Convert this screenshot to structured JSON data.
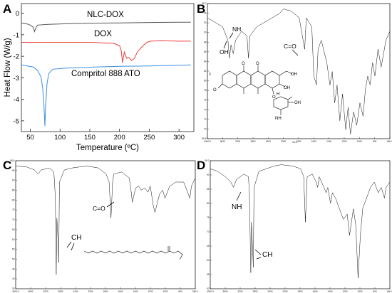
{
  "chart_data": [
    {
      "panel": "A",
      "type": "line",
      "xlabel": "Temperature (ºC)",
      "ylabel": "Heat Flow (W/g)",
      "xlim": [
        35,
        325
      ],
      "ylim": [
        -5.5,
        0.45
      ],
      "x_ticks": [
        "50",
        "100",
        "150",
        "200",
        "250",
        "300"
      ],
      "y_ticks": [
        "0",
        "-1",
        "-2",
        "-3",
        "-4",
        "-5"
      ],
      "series": [
        {
          "name": "NLC-DOX",
          "color": "#555555",
          "points": [
            [
              35,
              -0.45
            ],
            [
              45,
              -0.5
            ],
            [
              50,
              -0.55
            ],
            [
              55,
              -0.65
            ],
            [
              57,
              -0.85
            ],
            [
              59,
              -0.7
            ],
            [
              62,
              -0.55
            ],
            [
              80,
              -0.52
            ],
            [
              120,
              -0.48
            ],
            [
              160,
              -0.46
            ],
            [
              200,
              -0.45
            ],
            [
              250,
              -0.43
            ],
            [
              300,
              -0.42
            ],
            [
              320,
              -0.42
            ]
          ]
        },
        {
          "name": "DOX",
          "color": "#e8403a",
          "points": [
            [
              35,
              -1.35
            ],
            [
              80,
              -1.35
            ],
            [
              150,
              -1.35
            ],
            [
              190,
              -1.4
            ],
            [
              200,
              -1.5
            ],
            [
              203,
              -1.75
            ],
            [
              205,
              -2.3
            ],
            [
              208,
              -1.8
            ],
            [
              212,
              -2.1
            ],
            [
              216,
              -2.05
            ],
            [
              220,
              -2.2
            ],
            [
              225,
              -2.1
            ],
            [
              230,
              -1.8
            ],
            [
              238,
              -1.55
            ],
            [
              246,
              -1.35
            ],
            [
              252,
              -1.3
            ],
            [
              270,
              -1.28
            ],
            [
              300,
              -1.3
            ],
            [
              320,
              -1.3
            ]
          ]
        },
        {
          "name": "Compritol 888 ATO",
          "color": "#3b8fe0",
          "points": [
            [
              35,
              -2.4
            ],
            [
              55,
              -2.5
            ],
            [
              62,
              -2.65
            ],
            [
              68,
              -2.95
            ],
            [
              71,
              -3.5
            ],
            [
              73,
              -4.3
            ],
            [
              74.5,
              -5.25
            ],
            [
              76,
              -4.2
            ],
            [
              78,
              -3.3
            ],
            [
              81,
              -2.8
            ],
            [
              88,
              -2.6
            ],
            [
              110,
              -2.55
            ],
            [
              160,
              -2.5
            ],
            [
              200,
              -2.47
            ],
            [
              250,
              -2.45
            ],
            [
              300,
              -2.42
            ],
            [
              320,
              -2.4
            ]
          ]
        }
      ]
    },
    {
      "panel": "B",
      "type": "line",
      "xlim": [
        4000,
        400
      ],
      "x_ticks": [
        "4000.0",
        "3600",
        "3200",
        "2800",
        "2400",
        "2000",
        "1800",
        "1600",
        "1400",
        "1200",
        "1000",
        "800",
        "650.0"
      ],
      "y_ticks": [
        "98.2",
        "94",
        "92",
        "90",
        "88",
        "86",
        "84",
        "82",
        "80",
        "78",
        "76",
        "74",
        "72",
        "70",
        "68.5"
      ],
      "x_unit": "cm-1",
      "y_unit": "%T",
      "annotations": [
        "NH",
        "OH",
        "C=O"
      ],
      "points": [
        [
          4000,
          95
        ],
        [
          3800,
          94
        ],
        [
          3600,
          93
        ],
        [
          3460,
          90
        ],
        [
          3420,
          86
        ],
        [
          3380,
          89
        ],
        [
          3320,
          87
        ],
        [
          3260,
          90
        ],
        [
          3100,
          92
        ],
        [
          2960,
          91
        ],
        [
          2920,
          86
        ],
        [
          2880,
          91
        ],
        [
          2700,
          93
        ],
        [
          2500,
          94
        ],
        [
          2300,
          95
        ],
        [
          2100,
          96
        ],
        [
          2000,
          97
        ],
        [
          1900,
          96.5
        ],
        [
          1800,
          95
        ],
        [
          1730,
          88
        ],
        [
          1710,
          95
        ],
        [
          1640,
          93
        ],
        [
          1615,
          82
        ],
        [
          1580,
          80
        ],
        [
          1560,
          88
        ],
        [
          1520,
          90
        ],
        [
          1450,
          85
        ],
        [
          1410,
          80
        ],
        [
          1380,
          83
        ],
        [
          1350,
          76
        ],
        [
          1320,
          80
        ],
        [
          1285,
          72
        ],
        [
          1250,
          78
        ],
        [
          1210,
          70
        ],
        [
          1180,
          75
        ],
        [
          1150,
          69
        ],
        [
          1110,
          74
        ],
        [
          1070,
          71
        ],
        [
          1030,
          76
        ],
        [
          990,
          73
        ],
        [
          960,
          79
        ],
        [
          930,
          82
        ],
        [
          900,
          80
        ],
        [
          870,
          85
        ],
        [
          840,
          82
        ],
        [
          800,
          88
        ],
        [
          760,
          84
        ],
        [
          700,
          90
        ],
        [
          650,
          92
        ]
      ]
    },
    {
      "panel": "C",
      "type": "line",
      "xlim": [
        4000,
        400
      ],
      "x_ticks": [
        "4000.0",
        "3600",
        "3200",
        "2800",
        "2400",
        "2000",
        "1800",
        "1600",
        "1400",
        "1200",
        "1000",
        "800",
        "650.0"
      ],
      "y_ticks": [
        "98.6",
        "95",
        "90",
        "85",
        "80",
        "75",
        "70",
        "65",
        "60",
        "55",
        "50",
        "45",
        "40",
        "35"
      ],
      "x_unit": "cm-1",
      "y_unit": "%T",
      "annotations": [
        "CH",
        "C=O"
      ],
      "points": [
        [
          4000,
          96
        ],
        [
          3700,
          95.5
        ],
        [
          3500,
          94
        ],
        [
          3400,
          92
        ],
        [
          3320,
          94
        ],
        [
          3100,
          95
        ],
        [
          2980,
          93
        ],
        [
          2954,
          85
        ],
        [
          2940,
          80
        ],
        [
          2917,
          42
        ],
        [
          2900,
          70
        ],
        [
          2870,
          60
        ],
        [
          2849,
          48
        ],
        [
          2830,
          88
        ],
        [
          2700,
          94
        ],
        [
          2500,
          95
        ],
        [
          2300,
          95.5
        ],
        [
          2100,
          96
        ],
        [
          1900,
          95
        ],
        [
          1800,
          92
        ],
        [
          1760,
          88
        ],
        [
          1736,
          70
        ],
        [
          1715,
          88
        ],
        [
          1700,
          92
        ],
        [
          1600,
          93
        ],
        [
          1500,
          90
        ],
        [
          1472,
          82
        ],
        [
          1462,
          78
        ],
        [
          1420,
          85
        ],
        [
          1380,
          86
        ],
        [
          1350,
          84
        ],
        [
          1300,
          85
        ],
        [
          1260,
          83
        ],
        [
          1230,
          86
        ],
        [
          1190,
          76
        ],
        [
          1170,
          73
        ],
        [
          1110,
          82
        ],
        [
          1070,
          84
        ],
        [
          1040,
          80
        ],
        [
          980,
          86
        ],
        [
          900,
          88
        ],
        [
          800,
          88
        ],
        [
          720,
          80
        ],
        [
          700,
          86
        ],
        [
          650,
          90
        ]
      ]
    },
    {
      "panel": "D",
      "type": "line",
      "xlim": [
        4000,
        400
      ],
      "x_ticks": [
        "4000.0",
        "3600",
        "3200",
        "2800",
        "2400",
        "2000",
        "1800",
        "1600",
        "1400",
        "1200",
        "1000",
        "800",
        "650.0"
      ],
      "y_ticks": [
        "98.0",
        "90",
        "85",
        "80",
        "75",
        "70",
        "65",
        "60",
        "55",
        "50"
      ],
      "x_unit": "cm-1",
      "y_unit": "%T",
      "annotations": [
        "NH",
        "CH"
      ],
      "points": [
        [
          4000,
          95
        ],
        [
          3800,
          94
        ],
        [
          3600,
          92
        ],
        [
          3450,
          90
        ],
        [
          3380,
          88
        ],
        [
          3300,
          91
        ],
        [
          3100,
          93
        ],
        [
          2980,
          92
        ],
        [
          2954,
          86
        ],
        [
          2917,
          56
        ],
        [
          2900,
          75
        ],
        [
          2870,
          66
        ],
        [
          2849,
          58
        ],
        [
          2830,
          88
        ],
        [
          2700,
          94
        ],
        [
          2500,
          95
        ],
        [
          2300,
          96
        ],
        [
          2100,
          96.5
        ],
        [
          1900,
          96
        ],
        [
          1800,
          95
        ],
        [
          1760,
          92
        ],
        [
          1738,
          75
        ],
        [
          1715,
          92
        ],
        [
          1650,
          93
        ],
        [
          1600,
          90
        ],
        [
          1580,
          88
        ],
        [
          1560,
          92
        ],
        [
          1470,
          86
        ],
        [
          1450,
          88
        ],
        [
          1415,
          82
        ],
        [
          1390,
          86
        ],
        [
          1350,
          84
        ],
        [
          1300,
          80
        ],
        [
          1250,
          76
        ],
        [
          1200,
          78
        ],
        [
          1170,
          70
        ],
        [
          1120,
          80
        ],
        [
          1090,
          74
        ],
        [
          1060,
          54
        ],
        [
          1030,
          70
        ],
        [
          1000,
          80
        ],
        [
          950,
          84
        ],
        [
          900,
          88
        ],
        [
          850,
          90
        ],
        [
          800,
          86
        ],
        [
          760,
          88
        ],
        [
          720,
          84
        ],
        [
          700,
          88
        ],
        [
          650,
          90
        ]
      ]
    }
  ],
  "peak_labels_small": [
    "2919",
    "2850",
    "1730",
    "1615",
    "1581",
    "1410",
    "1283",
    "1209",
    "1113",
    "987",
    "1738",
    "1472",
    "1060"
  ],
  "structure_labels": {
    "B_OH_group": "OH",
    "B_NH2": "NH",
    "B_methoxy": "O",
    "B_sugar_O": "O",
    "B_H": "H"
  }
}
